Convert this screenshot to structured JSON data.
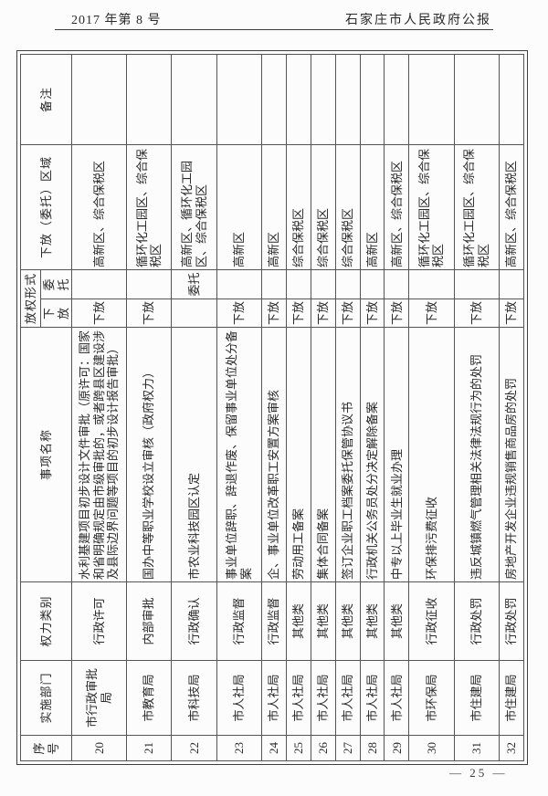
{
  "page": {
    "header_left": "2017 年第 8 号",
    "header_right": "石家庄市人民政府公报",
    "page_number_display": "— 25 —"
  },
  "table": {
    "headers": {
      "xuhao": "序号",
      "shishibumen": "实施部门",
      "quanlileibie": "权力类别",
      "shixiangmingcheng": "事项名称",
      "fangquanxingshi": "放权形式",
      "xiafang": "下放",
      "weituo": "委托",
      "quyu": "下放（委托）区域",
      "beizhu": "备注"
    },
    "rows": [
      {
        "num": "20",
        "dept": "市行政审批局",
        "cat": "行政许可",
        "item": "水利基建项目初步设计文件审批（原许可：国家和省明确规定由市级审批的，或者跨县区建设涉及县际边界问题等项目的初步设计报告审批）",
        "xiafang": "下放",
        "weituo": "",
        "region": "高新区、综合保税区",
        "note": ""
      },
      {
        "num": "21",
        "dept": "市教育局",
        "cat": "内部审批",
        "item": "国办中等职业学校设立审核（政府权力）",
        "xiafang": "下放",
        "weituo": "",
        "region": "循环化工园区、综合保税区",
        "note": ""
      },
      {
        "num": "22",
        "dept": "市科技局",
        "cat": "行政确认",
        "item": "市农业科技园区认定",
        "xiafang": "",
        "weituo": "委托",
        "region": "高新区、循环化工园区、综合保税区",
        "note": ""
      },
      {
        "num": "23",
        "dept": "市人社局",
        "cat": "行政监督",
        "item": "事业单位辞职、辞退作废、保留事业单位处分备案",
        "xiafang": "下放",
        "weituo": "",
        "region": "高新区",
        "note": ""
      },
      {
        "num": "24",
        "dept": "市人社局",
        "cat": "行政监督",
        "item": "企、事业单位改革职工安置方案审核",
        "xiafang": "下放",
        "weituo": "",
        "region": "高新区",
        "note": ""
      },
      {
        "num": "25",
        "dept": "市人社局",
        "cat": "其他类",
        "item": "劳动用工备案",
        "xiafang": "下放",
        "weituo": "",
        "region": "综合保税区",
        "note": ""
      },
      {
        "num": "26",
        "dept": "市人社局",
        "cat": "其他类",
        "item": "集体合同备案",
        "xiafang": "下放",
        "weituo": "",
        "region": "综合保税区",
        "note": ""
      },
      {
        "num": "27",
        "dept": "市人社局",
        "cat": "其他类",
        "item": "签订企业职工档案委托保管协议书",
        "xiafang": "下放",
        "weituo": "",
        "region": "综合保税区",
        "note": ""
      },
      {
        "num": "28",
        "dept": "市人社局",
        "cat": "其他类",
        "item": "行政机关公务员处分决定解除备案",
        "xiafang": "下放",
        "weituo": "",
        "region": "高新区",
        "note": ""
      },
      {
        "num": "29",
        "dept": "市人社局",
        "cat": "其他类",
        "item": "中专以上毕业生就业办理",
        "xiafang": "下放",
        "weituo": "",
        "region": "高新区、综合保税区",
        "note": ""
      },
      {
        "num": "30",
        "dept": "市环保局",
        "cat": "行政征收",
        "item": "环保排污费征收",
        "xiafang": "下放",
        "weituo": "",
        "region": "循环化工园区、综合保税区",
        "note": ""
      },
      {
        "num": "31",
        "dept": "市住建局",
        "cat": "行政处罚",
        "item": "违反城镇燃气管理相关法律法规行为的处罚",
        "xiafang": "下放",
        "weituo": "",
        "region": "循环化工园区、综合保税区",
        "note": ""
      },
      {
        "num": "32",
        "dept": "市住建局",
        "cat": "行政处罚",
        "item": "房地产开发企业违规销售商品房的处罚",
        "xiafang": "下放",
        "weituo": "",
        "region": "高新区、综合保税区",
        "note": ""
      }
    ]
  }
}
